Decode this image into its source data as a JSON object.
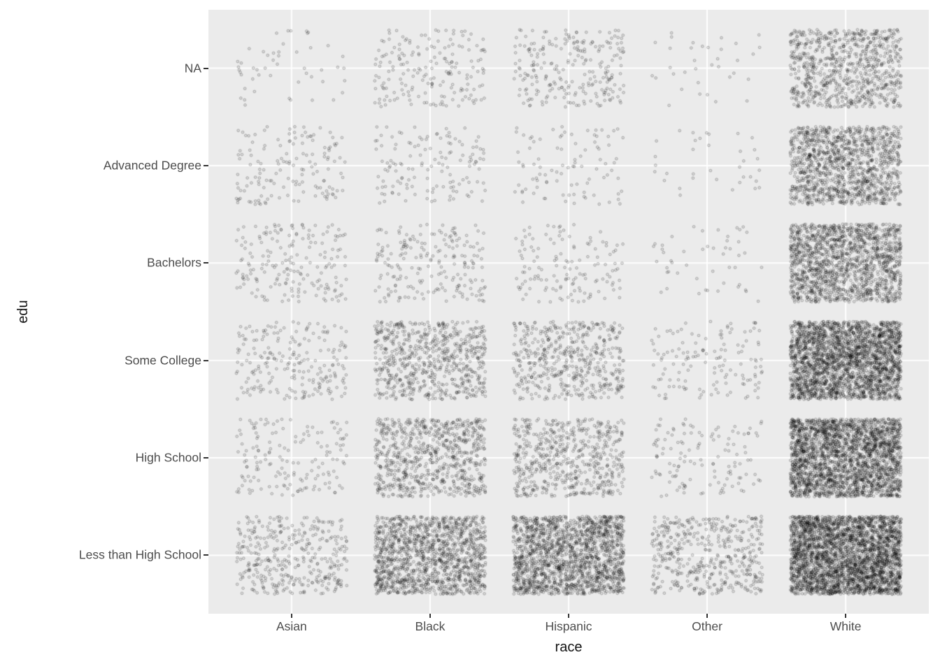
{
  "chart_data": {
    "type": "scatter",
    "variant": "jittered-categorical",
    "title": "",
    "xlabel": "race",
    "ylabel": "edu",
    "x_categories": [
      "Asian",
      "Black",
      "Hispanic",
      "Other",
      "White"
    ],
    "y_categories_bottom_to_top": [
      "Less than High School",
      "High School",
      "Some College",
      "Bachelors",
      "Advanced Degree",
      "NA"
    ],
    "counts_by_row_bottom_to_top": [
      {
        "edu": "Less than High School",
        "values": [
          380,
          1400,
          1800,
          480,
          3200
        ]
      },
      {
        "edu": "High School",
        "values": [
          160,
          800,
          600,
          130,
          2600
        ]
      },
      {
        "edu": "Some College",
        "values": [
          220,
          700,
          520,
          140,
          2600
        ]
      },
      {
        "edu": "Bachelors",
        "values": [
          190,
          210,
          140,
          50,
          1600
        ]
      },
      {
        "edu": "Advanced Degree",
        "values": [
          150,
          140,
          95,
          35,
          1300
        ]
      },
      {
        "edu": "NA",
        "values": [
          50,
          190,
          250,
          35,
          850
        ]
      }
    ],
    "jitter_width_units": 0.4,
    "jitter_height_units": 0.4,
    "style": {
      "panel_background": "#EBEBEB",
      "grid_color": "#FFFFFF",
      "point_stroke_color": "rgba(0,0,0,0.25)",
      "point_fill_color": "rgba(0,0,0,0.08)",
      "axis_text_color": "#4D4D4D",
      "axis_title_color": "#111111",
      "tick_color": "#333333"
    },
    "legend": "none",
    "grid": "major-only"
  }
}
